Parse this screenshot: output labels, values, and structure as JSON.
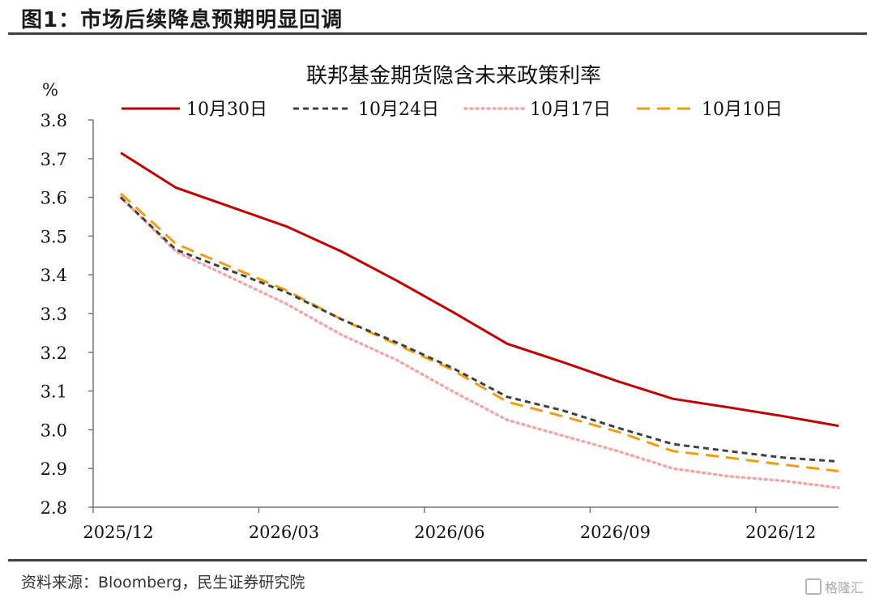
{
  "figure": {
    "label": "图1：市场后续降息预期明显回调",
    "source": "资料来源：Bloomberg，民生证券研究院",
    "watermark": "格隆汇"
  },
  "chart_data": {
    "type": "line",
    "title": "联邦基金期货隐含未来政策利率",
    "ylabel": "%",
    "xlabel": "",
    "ylim": [
      2.8,
      3.8
    ],
    "yticks": [
      2.8,
      2.9,
      3.0,
      3.1,
      3.2,
      3.3,
      3.4,
      3.5,
      3.6,
      3.7,
      3.8
    ],
    "xlim": [
      0,
      13.5
    ],
    "x_ticks": [
      {
        "x": 0,
        "label": "2025/12"
      },
      {
        "x": 3,
        "label": "2026/03"
      },
      {
        "x": 6,
        "label": "2026/06"
      },
      {
        "x": 9,
        "label": "2026/09"
      },
      {
        "x": 12,
        "label": "2026/12"
      }
    ],
    "x": [
      0.5,
      1.5,
      3.5,
      4.5,
      5.5,
      6.5,
      7.5,
      8.5,
      9.5,
      10.5,
      11.5,
      12.5,
      13.5
    ],
    "series": [
      {
        "name": "10月30日",
        "color": "#c00000",
        "style": "solid",
        "values": [
          3.715,
          3.625,
          3.525,
          3.46,
          3.385,
          3.305,
          3.222,
          3.175,
          3.125,
          3.08,
          3.058,
          3.035,
          3.01
        ]
      },
      {
        "name": "10月24日",
        "color": "#404040",
        "style": "dash",
        "values": [
          3.6,
          3.465,
          3.355,
          3.285,
          3.225,
          3.16,
          3.085,
          3.05,
          3.005,
          2.963,
          2.945,
          2.928,
          2.918
        ]
      },
      {
        "name": "10月17日",
        "color": "#f4a6a6",
        "style": "dot",
        "values": [
          3.6,
          3.46,
          3.325,
          3.245,
          3.18,
          3.1,
          3.025,
          2.985,
          2.945,
          2.9,
          2.88,
          2.868,
          2.85
        ]
      },
      {
        "name": "10月10日",
        "color": "#f39c12",
        "style": "longdash",
        "values": [
          3.61,
          3.48,
          3.36,
          3.285,
          3.22,
          3.155,
          3.072,
          3.035,
          2.995,
          2.945,
          2.928,
          2.91,
          2.893
        ]
      }
    ]
  }
}
